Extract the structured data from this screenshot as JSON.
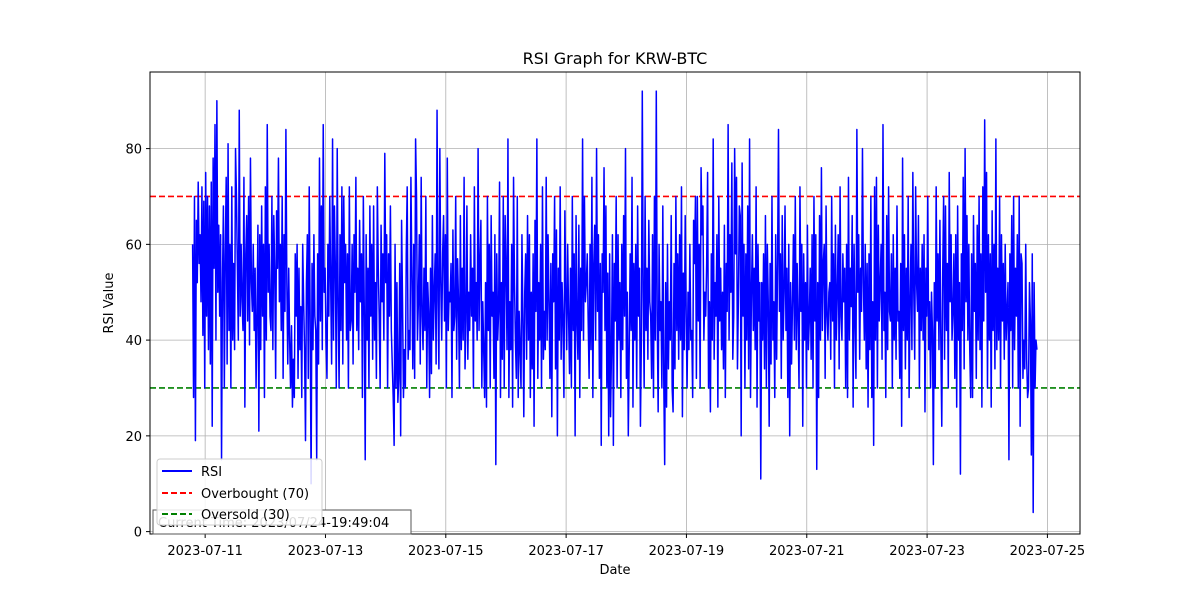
{
  "chart_data": {
    "type": "line",
    "title": "RSI Graph for KRW-BTC",
    "xlabel": "Date",
    "ylabel": "RSI Value",
    "x_range": [
      "2023-07-10 02:00",
      "2023-07-25 13:00"
    ],
    "ylim": [
      -0.5,
      96
    ],
    "x_ticks": [
      "2023-07-11",
      "2023-07-13",
      "2023-07-15",
      "2023-07-17",
      "2023-07-19",
      "2023-07-21",
      "2023-07-23",
      "2023-07-25"
    ],
    "y_ticks": [
      0,
      20,
      40,
      60,
      80
    ],
    "grid": true,
    "legend_position": "lower-left",
    "annotation": "Current Time: 2023/07/24-19:49:04",
    "series": [
      {
        "name": "RSI",
        "color": "#0000ff",
        "style": "solid",
        "start": "2023-07-10 19:00",
        "end": "2023-07-24 19:49",
        "values": [
          60,
          28,
          70,
          19,
          65,
          52,
          73,
          56,
          62,
          48,
          72,
          41,
          69,
          30,
          75,
          45,
          70,
          38,
          68,
          35,
          73,
          22,
          78,
          55,
          85,
          40,
          90,
          50,
          64,
          45,
          62,
          15,
          52,
          68,
          30,
          58,
          74,
          35,
          81,
          42,
          60,
          30,
          72,
          40,
          56,
          38,
          80,
          70,
          55,
          40,
          88,
          45,
          60,
          48,
          42,
          74,
          26,
          58,
          66,
          44,
          70,
          39,
          78,
          52,
          46,
          60,
          42,
          55,
          30,
          45,
          64,
          21,
          62,
          38,
          68,
          45,
          60,
          28,
          72,
          40,
          85,
          50,
          60,
          45,
          42,
          70,
          38,
          66,
          55,
          32,
          67,
          55,
          78,
          48,
          60,
          42,
          70,
          32,
          62,
          46,
          84,
          52,
          35,
          55,
          40,
          30,
          43,
          26,
          36,
          28,
          58,
          45,
          60,
          32,
          55,
          38,
          47,
          28,
          60,
          48,
          38,
          19,
          52,
          62,
          32,
          72,
          44,
          10,
          56,
          38,
          62,
          45,
          42,
          15,
          58,
          35,
          78,
          44,
          68,
          38,
          85,
          50,
          55,
          40,
          32,
          60,
          45,
          70,
          52,
          35,
          82,
          40,
          68,
          55,
          30,
          80,
          48,
          30,
          62,
          42,
          72,
          35,
          70,
          52,
          60,
          40,
          58,
          30,
          72,
          42,
          44,
          60,
          35,
          62,
          50,
          74,
          42,
          55,
          38,
          65,
          48,
          58,
          28,
          70,
          46,
          15,
          62,
          40,
          55,
          30,
          68,
          45,
          60,
          36,
          68,
          40,
          52,
          32,
          72,
          55,
          45,
          30,
          64,
          48,
          58,
          40,
          79,
          52,
          62,
          30,
          58,
          45,
          68,
          42,
          35,
          28,
          18,
          60,
          30,
          52,
          27,
          32,
          56,
          20,
          65,
          48,
          28,
          38,
          30,
          58,
          72,
          36,
          42,
          38,
          74,
          54,
          34,
          60,
          32,
          82,
          70,
          40,
          48,
          62,
          35,
          74,
          45,
          38,
          55,
          42,
          70,
          30,
          52,
          46,
          28,
          55,
          33,
          66,
          40,
          50,
          58,
          35,
          88,
          48,
          34,
          80,
          52,
          40,
          58,
          66,
          44,
          62,
          30,
          78,
          42,
          50,
          48,
          56,
          28,
          63,
          42,
          45,
          70,
          36,
          57,
          48,
          30,
          66,
          38,
          55,
          40,
          74,
          34,
          44,
          68,
          36,
          50,
          42,
          62,
          45,
          55,
          30,
          72,
          44,
          52,
          40,
          80,
          42,
          56,
          65,
          30,
          48,
          38,
          28,
          52,
          26,
          70,
          42,
          60,
          30,
          66,
          45,
          50,
          32,
          62,
          14,
          58,
          40,
          46,
          73,
          28,
          52,
          36,
          70,
          30,
          66,
          55,
          38,
          82,
          28,
          48,
          38,
          60,
          26,
          74,
          52,
          40,
          32,
          70,
          28,
          46,
          38,
          30,
          62,
          45,
          24,
          50,
          58,
          36,
          66,
          40,
          62,
          28,
          50,
          34,
          58,
          22,
          65,
          46,
          82,
          32,
          52,
          40,
          60,
          30,
          72,
          36,
          46,
          38,
          74,
          40,
          62,
          48,
          32,
          56,
          24,
          58,
          48,
          70,
          34,
          63,
          20,
          55,
          40,
          72,
          36,
          52,
          44,
          28,
          67,
          50,
          38,
          60,
          45,
          33,
          55,
          30,
          70,
          42,
          58,
          20,
          66,
          44,
          36,
          64,
          28,
          55,
          42,
          82,
          40,
          70,
          48,
          52,
          58,
          44,
          32,
          60,
          38,
          74,
          28,
          56,
          64,
          40,
          80,
          46,
          62,
          32,
          56,
          18,
          58,
          50,
          76,
          42,
          68,
          30,
          54,
          20,
          58,
          24,
          38,
          62,
          18,
          56,
          44,
          70,
          30,
          62,
          40,
          52,
          28,
          60,
          38,
          66,
          45,
          80,
          32,
          50,
          20,
          38,
          58,
          42,
          74,
          26,
          56,
          40,
          60,
          30,
          68,
          45,
          55,
          22,
          40,
          92,
          50,
          30,
          70,
          42,
          55,
          36,
          65,
          48,
          45,
          32,
          62,
          28,
          70,
          40,
          92,
          45,
          25,
          60,
          42,
          48,
          30,
          68,
          32,
          14,
          52,
          26,
          60,
          34,
          48,
          40,
          66,
          30,
          25,
          56,
          34,
          70,
          42,
          58,
          36,
          62,
          40,
          72,
          24,
          54,
          38,
          66,
          46,
          30,
          50,
          38,
          60,
          40,
          42,
          28,
          65,
          56,
          70,
          32,
          70,
          44,
          60,
          30,
          76,
          62,
          68,
          40,
          50,
          45,
          56,
          75,
          30,
          48,
          25,
          58,
          40,
          82,
          36,
          52,
          45,
          62,
          26,
          70,
          44,
          55,
          38,
          50,
          34,
          64,
          28,
          56,
          46,
          85,
          40,
          62,
          50,
          77,
          36,
          45,
          80,
          58,
          74,
          34,
          48,
          68,
          66,
          20,
          77,
          45,
          60,
          30,
          58,
          40,
          68,
          34,
          82,
          28,
          50,
          62,
          42,
          55,
          38,
          72,
          26,
          60,
          44,
          52,
          11,
          52,
          40,
          58,
          34,
          66,
          30,
          60,
          48,
          22,
          56,
          35,
          70,
          40,
          48,
          28,
          62,
          36,
          56,
          84,
          46,
          58,
          32,
          66,
          40,
          50,
          68,
          42,
          55,
          28,
          60,
          20,
          52,
          35,
          48,
          62,
          40,
          70,
          38,
          56,
          44,
          30,
          72,
          46,
          60,
          22,
          58,
          40,
          52,
          30,
          64,
          38,
          44,
          55,
          36,
          62,
          30,
          70,
          44,
          62,
          13,
          52,
          28,
          66,
          40,
          76,
          42,
          56,
          60,
          32,
          68,
          45,
          40,
          50,
          52,
          36,
          70,
          44,
          58,
          30,
          64,
          40,
          50,
          62,
          34,
          72,
          45,
          40,
          58,
          48,
          55,
          30,
          60,
          28,
          74,
          40,
          55,
          47,
          66,
          26,
          60,
          44,
          32,
          84,
          50,
          62,
          36,
          55,
          46,
          80,
          52,
          40,
          60,
          34,
          56,
          26,
          58,
          38,
          70,
          28,
          48,
          18,
          72,
          40,
          74,
          30,
          64,
          44,
          52,
          60,
          36,
          85,
          42,
          50,
          28,
          66,
          38,
          72,
          46,
          44,
          58,
          30,
          62,
          40,
          55,
          36,
          68,
          44,
          46,
          32,
          56,
          22,
          78,
          42,
          62,
          34,
          55,
          40,
          70,
          28,
          48,
          60,
          38,
          75,
          50,
          36,
          72,
          52,
          46,
          66,
          30,
          55,
          42,
          60,
          40,
          62,
          25,
          55,
          45,
          70,
          38,
          48,
          30,
          50,
          42,
          14,
          52,
          30,
          72,
          44,
          58,
          38,
          65,
          40,
          22,
          54,
          70,
          36,
          68,
          42,
          56,
          30,
          75,
          48,
          62,
          40,
          46,
          58,
          32,
          62,
          26,
          68,
          40,
          52,
          12,
          58,
          42,
          74,
          34,
          80,
          48,
          66,
          40,
          60,
          38,
          28,
          58,
          28,
          66,
          46,
          56,
          32,
          64,
          40,
          70,
          38,
          58,
          26,
          72,
          44,
          86,
          50,
          75,
          30,
          62,
          40,
          58,
          26,
          67,
          42,
          60,
          34,
          82,
          38,
          55,
          40,
          70,
          30,
          62,
          44,
          56,
          36,
          60,
          40,
          46,
          52,
          15,
          58,
          42,
          66,
          30,
          70,
          38,
          55,
          45,
          62,
          30,
          70,
          22,
          58,
          56,
          32,
          40,
          34,
          60,
          36,
          28,
          30,
          52,
          44,
          16,
          58,
          4,
          52,
          30,
          40,
          38
        ]
      },
      {
        "name": "Overbought (70)",
        "color": "#ff0000",
        "style": "dashed",
        "value": 70
      },
      {
        "name": "Oversold (30)",
        "color": "#008000",
        "style": "dashed",
        "value": 30
      }
    ]
  }
}
